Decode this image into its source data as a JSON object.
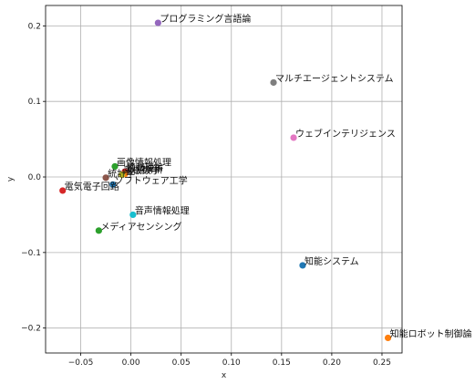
{
  "chart_data": {
    "type": "scatter",
    "title": "",
    "xlabel": "x",
    "ylabel": "y",
    "xlim": [
      -0.085,
      0.27
    ],
    "ylim": [
      -0.233,
      0.227
    ],
    "x_ticks": [
      -0.05,
      0.0,
      0.05,
      0.1,
      0.15,
      0.2,
      0.25
    ],
    "x_tick_labels": [
      "−0.05",
      "0.00",
      "0.05",
      "0.10",
      "0.15",
      "0.20",
      "0.25"
    ],
    "y_ticks": [
      -0.2,
      -0.1,
      0.0,
      0.1,
      0.2
    ],
    "y_tick_labels": [
      "−0.2",
      "−0.1",
      "0.0",
      "0.1",
      "0.2"
    ],
    "grid": true,
    "points": [
      {
        "label": "プログラミング言語論",
        "x": 0.027,
        "y": 0.204,
        "color": "#9467bd"
      },
      {
        "label": "マルチエージェントシステム",
        "x": 0.142,
        "y": 0.125,
        "color": "#7f7f7f"
      },
      {
        "label": "ウェブインテリジェンス",
        "x": 0.162,
        "y": 0.052,
        "color": "#e377c2"
      },
      {
        "label": "画像情報処理",
        "x": -0.016,
        "y": 0.014,
        "color": "#2ca02c"
      },
      {
        "label": "情報理論",
        "x": -0.006,
        "y": 0.007,
        "color": "#d62728"
      },
      {
        "label": "数値解析",
        "x": -0.006,
        "y": 0.004,
        "color": "#ff7f0e"
      },
      {
        "label": "離散数学",
        "x": -0.009,
        "y": 0.003,
        "color": "#bcbd22"
      },
      {
        "label": "統計学",
        "x": -0.025,
        "y": -0.001,
        "color": "#8c564b"
      },
      {
        "label": "ソフトウェア工学",
        "x": -0.018,
        "y": -0.01,
        "color": "#1f77b4"
      },
      {
        "label": "電気電子回路",
        "x": -0.068,
        "y": -0.018,
        "color": "#d62728"
      },
      {
        "label": "音声情報処理",
        "x": 0.002,
        "y": -0.05,
        "color": "#17becf"
      },
      {
        "label": "メディアセンシング",
        "x": -0.032,
        "y": -0.071,
        "color": "#2ca02c"
      },
      {
        "label": "知能システム",
        "x": 0.171,
        "y": -0.117,
        "color": "#1f77b4"
      },
      {
        "label": "知能ロボット制御論",
        "x": 0.256,
        "y": -0.213,
        "color": "#ff7f0e"
      }
    ]
  }
}
